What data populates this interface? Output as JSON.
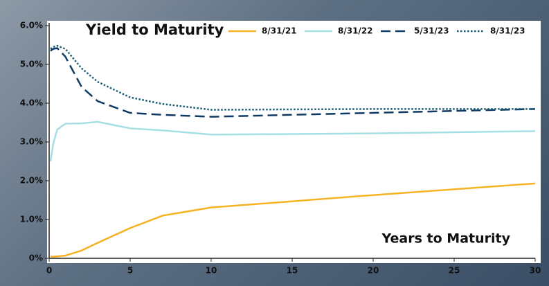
{
  "chart_data": {
    "type": "line",
    "title": "Yield to Maturity",
    "x_label": "Years to Maturity",
    "xlim": [
      0,
      30
    ],
    "xticks": [
      0,
      5,
      10,
      15,
      20,
      25,
      30
    ],
    "ylim": [
      0,
      6
    ],
    "yticks": [
      {
        "value": 0,
        "label": "0%"
      },
      {
        "value": 1,
        "label": "1.0%"
      },
      {
        "value": 2,
        "label": "2.0%"
      },
      {
        "value": 3,
        "label": "3.0%"
      },
      {
        "value": 4,
        "label": "4.0%"
      },
      {
        "value": 5,
        "label": "5.0%"
      },
      {
        "value": 6,
        "label": "6.0%"
      }
    ],
    "grid": false,
    "legend": "top-right",
    "x": [
      0.083,
      0.25,
      0.5,
      1,
      2,
      3,
      5,
      7,
      10,
      20,
      30
    ],
    "series": [
      {
        "name": "8/31/21",
        "color": "#f5b323",
        "line_style": "solid",
        "values": [
          0.05,
          0.04,
          0.05,
          0.07,
          0.2,
          0.4,
          0.78,
          1.1,
          1.31,
          1.63,
          1.93
        ]
      },
      {
        "name": "8/31/22",
        "color": "#a6dfe2",
        "line_style": "solid",
        "values": [
          2.5,
          2.95,
          3.32,
          3.47,
          3.48,
          3.52,
          3.35,
          3.3,
          3.19,
          3.22,
          3.28
        ]
      },
      {
        "name": "5/31/23",
        "color": "#0e3a63",
        "line_style": "dashed",
        "values": [
          5.35,
          5.4,
          5.42,
          5.2,
          4.42,
          4.05,
          3.75,
          3.7,
          3.65,
          3.75,
          3.85
        ]
      },
      {
        "name": "8/31/23",
        "color": "#1a5d74",
        "line_style": "dotted",
        "values": [
          5.4,
          5.45,
          5.48,
          5.4,
          4.9,
          4.55,
          4.15,
          3.98,
          3.83,
          3.85,
          3.85
        ]
      }
    ]
  }
}
